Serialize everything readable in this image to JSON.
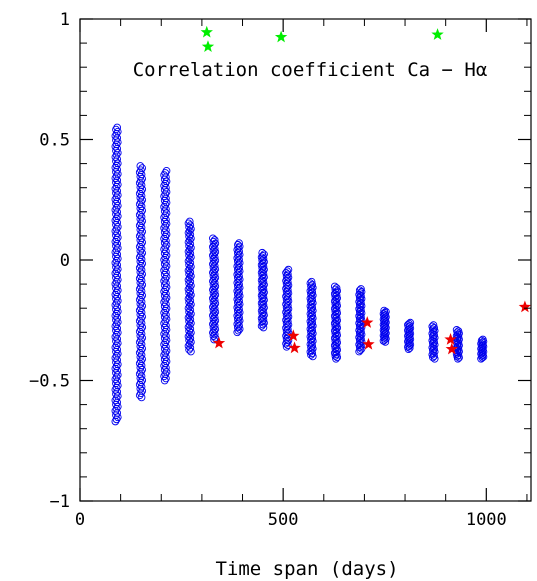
{
  "chart_data": {
    "type": "scatter",
    "title": "",
    "xlabel": "Time span (days)",
    "ylabel": "",
    "annotation": "Correlation coefficient Ca − Hα",
    "xlim": [
      0,
      1110
    ],
    "ylim": [
      -1,
      1
    ],
    "x_ticks": [
      {
        "value": 0,
        "label": "0"
      },
      {
        "value": 500,
        "label": "500"
      },
      {
        "value": 1000,
        "label": "1000"
      }
    ],
    "y_ticks": [
      {
        "value": -1,
        "label": "−1"
      },
      {
        "value": -0.5,
        "label": "−0.5"
      },
      {
        "value": 0,
        "label": "0"
      },
      {
        "value": 0.5,
        "label": "0.5"
      },
      {
        "value": 1,
        "label": "1"
      }
    ],
    "grid": false,
    "colors": {
      "circles": "#0000ee",
      "red_stars": "#ee0000",
      "green_stars": "#00ee00"
    },
    "columns": [
      {
        "x": 90,
        "ymin": -0.67,
        "ymax": 0.55,
        "n": 140
      },
      {
        "x": 150,
        "ymin": -0.57,
        "ymax": 0.39,
        "n": 110
      },
      {
        "x": 210,
        "ymin": -0.5,
        "ymax": 0.37,
        "n": 100
      },
      {
        "x": 270,
        "ymin": -0.38,
        "ymax": 0.16,
        "n": 70
      },
      {
        "x": 330,
        "ymin": -0.33,
        "ymax": 0.09,
        "n": 60
      },
      {
        "x": 390,
        "ymin": -0.3,
        "ymax": 0.07,
        "n": 55
      },
      {
        "x": 450,
        "ymin": -0.28,
        "ymax": 0.03,
        "n": 50
      },
      {
        "x": 510,
        "ymin": -0.36,
        "ymax": -0.04,
        "n": 50
      },
      {
        "x": 570,
        "ymin": -0.4,
        "ymax": -0.09,
        "n": 50
      },
      {
        "x": 630,
        "ymin": -0.41,
        "ymax": -0.11,
        "n": 50
      },
      {
        "x": 690,
        "ymin": -0.38,
        "ymax": -0.12,
        "n": 45
      },
      {
        "x": 750,
        "ymin": -0.34,
        "ymax": -0.21,
        "n": 30
      },
      {
        "x": 810,
        "ymin": -0.37,
        "ymax": -0.26,
        "n": 25
      },
      {
        "x": 870,
        "ymin": -0.41,
        "ymax": -0.27,
        "n": 25
      },
      {
        "x": 930,
        "ymin": -0.41,
        "ymax": -0.29,
        "n": 25
      },
      {
        "x": 990,
        "ymin": -0.41,
        "ymax": -0.33,
        "n": 20
      }
    ],
    "red_stars": [
      {
        "x": 342,
        "y": -0.345
      },
      {
        "x": 525,
        "y": -0.315
      },
      {
        "x": 528,
        "y": -0.365
      },
      {
        "x": 707,
        "y": -0.26
      },
      {
        "x": 710,
        "y": -0.35
      },
      {
        "x": 912,
        "y": -0.33
      },
      {
        "x": 915,
        "y": -0.37
      },
      {
        "x": 1095,
        "y": -0.195
      }
    ],
    "green_stars": [
      {
        "x": 312,
        "y": 0.945
      },
      {
        "x": 315,
        "y": 0.885
      },
      {
        "x": 495,
        "y": 0.925
      },
      {
        "x": 880,
        "y": 0.935
      }
    ]
  }
}
